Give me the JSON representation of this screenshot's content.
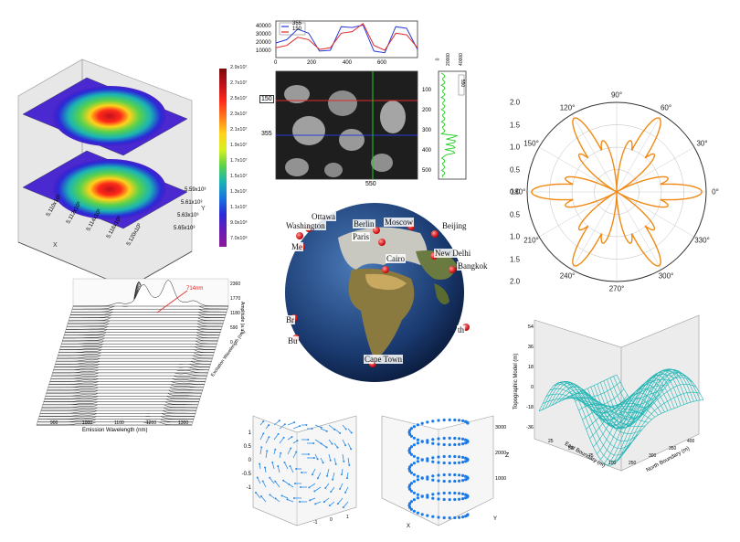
{
  "colorbar": {
    "labels": [
      "2.9x10⁷",
      "2.7x10⁷",
      "2.5x10⁷",
      "2.3x10⁷",
      "2.1x10⁷",
      "1.9x10⁷",
      "1.7x10⁷",
      "1.5x10⁷",
      "1.3x10⁷",
      "1.1x10⁷",
      "9.0x10⁶",
      "7.0x10⁶"
    ],
    "colors": [
      "#7a0a0a",
      "#c0121a",
      "#ff2a1a",
      "#ff7a1a",
      "#ffd21a",
      "#d8f020",
      "#5ad24a",
      "#1ab4b4",
      "#1a74e0",
      "#2a2ad8",
      "#6a1ab4",
      "#8a1a9a"
    ]
  },
  "surface3d": {
    "axis_ticks_x": [
      "5.110x10³",
      "5.112x10³",
      "5.114x10³",
      "5.116x10³",
      "5.120x10³"
    ],
    "axis_ticks_y": [
      "5.59x10³",
      "5.61x10³",
      "5.63x10³",
      "5.65x10³"
    ],
    "x_label": "X",
    "y_label": "Y"
  },
  "image_profile": {
    "legend": [
      "355",
      "150"
    ],
    "line_colors": [
      "#2a3ad8",
      "#e02a2a"
    ],
    "top_y_ticks": [
      "40000",
      "30000",
      "20000",
      "10000"
    ],
    "top_x_ticks": [
      "0",
      "200",
      "400",
      "600"
    ],
    "left_ticks_y": [
      "150",
      "355"
    ],
    "bottom_label": "550",
    "right_top_ticks": [
      "0",
      "20000",
      "40000"
    ],
    "right_y_ticks": [
      "100",
      "200",
      "300",
      "400",
      "500"
    ],
    "right_legend": "550"
  },
  "globe": {
    "cities": [
      "Ottawa",
      "Washington",
      "Berlin",
      "Moscow",
      "Beijing",
      "Paris",
      "New Delhi",
      "Cairo",
      "Bangkok",
      "Cape Town",
      "Me",
      "Br",
      "Bu",
      "th"
    ]
  },
  "waterfall": {
    "annotation": "714nm",
    "x_label": "Emission Wavelength (nm)",
    "x_ticks": [
      "900",
      "1000",
      "1100",
      "1200",
      "1300"
    ],
    "y_label": "Excitation Wavelength (nm)",
    "z_label": "Amplitude (a.u.)",
    "z_ticks": [
      "2360",
      "1770",
      "1180",
      "590",
      "0"
    ]
  },
  "polar": {
    "r_ticks": [
      "2.0",
      "1.5",
      "1.0",
      "0.5",
      "0.0",
      "0.5",
      "1.0",
      "1.5",
      "2.0"
    ],
    "angle_labels": [
      "0°",
      "30°",
      "60°",
      "90°",
      "120°",
      "150°",
      "180°",
      "210°",
      "240°",
      "270°",
      "300°",
      "330°"
    ],
    "color": "#f08a14"
  },
  "wireframe": {
    "z_label": "Topographic Model (m)",
    "z_ticks": [
      "54",
      "36",
      "18",
      "0",
      "-18",
      "-36"
    ],
    "x_label": "East Boundary (m)",
    "x_ticks": [
      "25",
      "50",
      "75",
      "100"
    ],
    "y_label": "North Boundary (m)",
    "y_ticks": [
      "250",
      "300",
      "350",
      "400"
    ],
    "color": "#20b4b4"
  },
  "vector3d": {
    "y_ticks": [
      "1",
      "0.5",
      "0",
      "-0.5",
      "-1"
    ],
    "x_ticks": [
      "-1",
      "0",
      "1"
    ],
    "color": "#2a8ae8"
  },
  "helix3d": {
    "z_label": "Z",
    "z_ticks": [
      "3000",
      "2000",
      "1000"
    ],
    "x_label": "X",
    "y_label": "Y",
    "color": "#1a7ae8"
  },
  "chart_data": [
    {
      "type": "line",
      "title": "",
      "series": [
        {
          "name": "355",
          "values": [
            18000,
            22000,
            35000,
            30000,
            8000,
            9000,
            38000,
            37000,
            40000,
            8000,
            6000,
            38000,
            36000,
            10000
          ]
        },
        {
          "name": "150",
          "values": [
            12000,
            15000,
            25000,
            22000,
            10000,
            12000,
            30000,
            32000,
            42000,
            15000,
            9000,
            30000,
            28000,
            12000
          ]
        }
      ],
      "xlim": [
        0,
        800
      ],
      "ylim": [
        0,
        45000
      ]
    },
    {
      "type": "heatmap",
      "title": "",
      "colorbar_range": [
        7000000,
        29000000
      ]
    },
    {
      "type": "scatter",
      "title": "",
      "note_series": "polar rose curve",
      "rlim": [
        0,
        2.0
      ]
    }
  ]
}
